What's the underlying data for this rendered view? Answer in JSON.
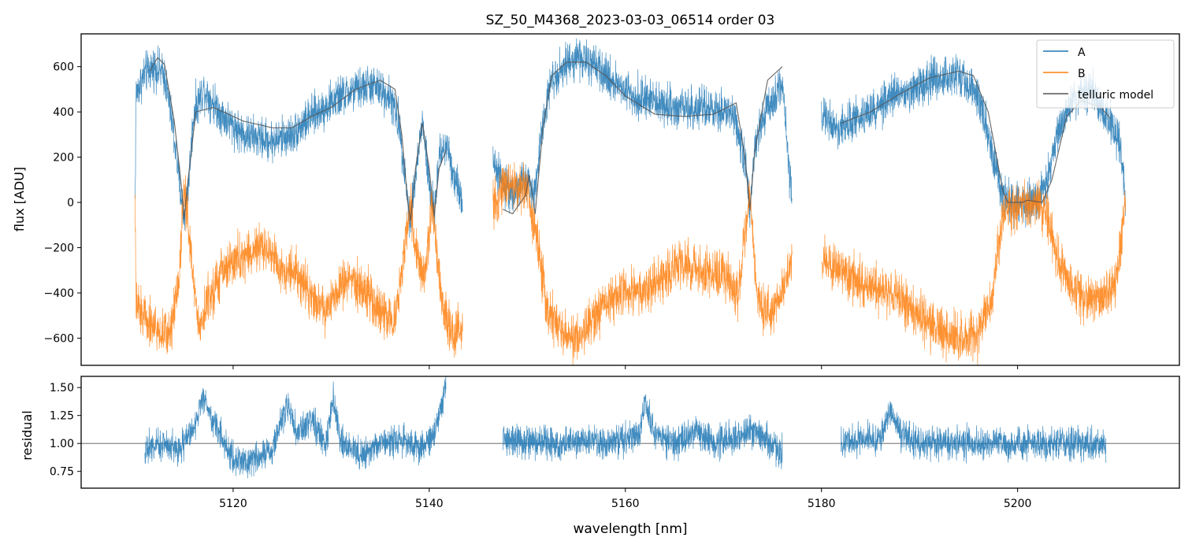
{
  "chart_data": [
    {
      "type": "line",
      "panel": "spectrum",
      "title": "SZ_50_M4368_2023-03-03_06514  order 03",
      "xlabel": "",
      "ylabel": "flux [ADU]",
      "xlim": [
        5104.5,
        5216.5
      ],
      "ylim": [
        -720,
        745
      ],
      "yticks": [
        -600,
        -400,
        -200,
        0,
        200,
        400,
        600
      ],
      "ytick_labels": [
        "−600",
        "−400",
        "−200",
        "0",
        "200",
        "400",
        "600"
      ],
      "legend_position": "top-right",
      "segments": [
        {
          "x0": 5110.0,
          "x1": 5143.4
        },
        {
          "x0": 5146.5,
          "x1": 5177.0
        },
        {
          "x0": 5180.0,
          "x1": 5211.0
        }
      ],
      "series": [
        {
          "name": "A",
          "color": "#1f77b4",
          "noise": 70,
          "points": [
            [
              5110.0,
              0
            ],
            [
              5110.1,
              480
            ],
            [
              5111.0,
              570
            ],
            [
              5112.0,
              600
            ],
            [
              5113.0,
              560
            ],
            [
              5113.8,
              350
            ],
            [
              5114.6,
              60
            ],
            [
              5115.0,
              -60
            ],
            [
              5115.4,
              60
            ],
            [
              5116.0,
              400
            ],
            [
              5117.0,
              500
            ],
            [
              5119.0,
              380
            ],
            [
              5121.0,
              300
            ],
            [
              5124.0,
              270
            ],
            [
              5126.0,
              300
            ],
            [
              5128.0,
              380
            ],
            [
              5131.0,
              470
            ],
            [
              5134.0,
              520
            ],
            [
              5136.0,
              470
            ],
            [
              5137.0,
              330
            ],
            [
              5137.6,
              100
            ],
            [
              5138.0,
              -80
            ],
            [
              5138.5,
              80
            ],
            [
              5139.3,
              360
            ],
            [
              5140.0,
              80
            ],
            [
              5140.5,
              -60
            ],
            [
              5141.0,
              200
            ],
            [
              5141.8,
              260
            ],
            [
              5142.5,
              120
            ],
            [
              5143.4,
              0
            ],
            [
              5146.5,
              200
            ],
            [
              5147.5,
              80
            ],
            [
              5148.5,
              50
            ],
            [
              5150.0,
              100
            ],
            [
              5150.8,
              20
            ],
            [
              5151.5,
              350
            ],
            [
              5152.5,
              550
            ],
            [
              5155.0,
              650
            ],
            [
              5158.0,
              560
            ],
            [
              5161.0,
              470
            ],
            [
              5164.0,
              430
            ],
            [
              5168.0,
              410
            ],
            [
              5171.0,
              390
            ],
            [
              5172.2,
              200
            ],
            [
              5172.7,
              -60
            ],
            [
              5173.2,
              240
            ],
            [
              5174.5,
              420
            ],
            [
              5176.0,
              530
            ],
            [
              5177.0,
              0
            ],
            [
              5180.0,
              380
            ],
            [
              5182.0,
              330
            ],
            [
              5185.0,
              400
            ],
            [
              5188.0,
              480
            ],
            [
              5191.0,
              540
            ],
            [
              5194.0,
              570
            ],
            [
              5196.0,
              480
            ],
            [
              5197.5,
              200
            ],
            [
              5198.5,
              30
            ],
            [
              5200.0,
              0
            ],
            [
              5202.0,
              0
            ],
            [
              5203.0,
              80
            ],
            [
              5204.0,
              300
            ],
            [
              5205.5,
              450
            ],
            [
              5207.5,
              500
            ],
            [
              5209.5,
              350
            ],
            [
              5210.5,
              250
            ],
            [
              5211.0,
              0
            ]
          ]
        },
        {
          "name": "B",
          "color": "#ff7f0e",
          "noise": 80,
          "points": [
            [
              5110.0,
              0
            ],
            [
              5110.1,
              -460
            ],
            [
              5111.0,
              -500
            ],
            [
              5112.5,
              -580
            ],
            [
              5113.5,
              -580
            ],
            [
              5114.5,
              -330
            ],
            [
              5115.0,
              100
            ],
            [
              5115.5,
              -150
            ],
            [
              5116.5,
              -560
            ],
            [
              5117.5,
              -420
            ],
            [
              5119.0,
              -300
            ],
            [
              5120.5,
              -250
            ],
            [
              5122.0,
              -220
            ],
            [
              5123.5,
              -200
            ],
            [
              5125.0,
              -300
            ],
            [
              5126.5,
              -300
            ],
            [
              5128.0,
              -420
            ],
            [
              5129.5,
              -480
            ],
            [
              5130.5,
              -400
            ],
            [
              5132.0,
              -330
            ],
            [
              5133.0,
              -380
            ],
            [
              5134.0,
              -420
            ],
            [
              5135.0,
              -480
            ],
            [
              5136.5,
              -520
            ],
            [
              5137.2,
              -300
            ],
            [
              5138.0,
              0
            ],
            [
              5138.6,
              -200
            ],
            [
              5139.5,
              -330
            ],
            [
              5140.3,
              0
            ],
            [
              5140.8,
              -250
            ],
            [
              5141.5,
              -480
            ],
            [
              5142.5,
              -600
            ],
            [
              5143.4,
              -560
            ],
            [
              5146.5,
              -20
            ],
            [
              5148.0,
              80
            ],
            [
              5150.0,
              60
            ],
            [
              5151.0,
              -150
            ],
            [
              5152.0,
              -480
            ],
            [
              5154.0,
              -600
            ],
            [
              5156.0,
              -560
            ],
            [
              5158.0,
              -450
            ],
            [
              5160.0,
              -380
            ],
            [
              5162.0,
              -400
            ],
            [
              5164.0,
              -320
            ],
            [
              5166.0,
              -260
            ],
            [
              5168.0,
              -330
            ],
            [
              5170.0,
              -300
            ],
            [
              5171.5,
              -420
            ],
            [
              5172.7,
              40
            ],
            [
              5173.5,
              -450
            ],
            [
              5175.0,
              -500
            ],
            [
              5176.0,
              -380
            ],
            [
              5177.0,
              -250
            ],
            [
              5180.0,
              -260
            ],
            [
              5182.0,
              -300
            ],
            [
              5184.0,
              -350
            ],
            [
              5186.0,
              -380
            ],
            [
              5188.0,
              -420
            ],
            [
              5190.0,
              -500
            ],
            [
              5192.0,
              -560
            ],
            [
              5194.0,
              -600
            ],
            [
              5196.0,
              -580
            ],
            [
              5197.5,
              -400
            ],
            [
              5198.5,
              -50
            ],
            [
              5200.0,
              0
            ],
            [
              5202.0,
              0
            ],
            [
              5203.0,
              -60
            ],
            [
              5204.0,
              -250
            ],
            [
              5205.5,
              -380
            ],
            [
              5207.0,
              -430
            ],
            [
              5208.5,
              -420
            ],
            [
              5210.0,
              -360
            ],
            [
              5211.0,
              10
            ]
          ]
        },
        {
          "name": "telluric model",
          "color": "#555555",
          "noise": 0,
          "points": [
            [
              5111.5,
              580
            ],
            [
              5112.3,
              640
            ],
            [
              5113.0,
              610
            ],
            [
              5114.0,
              360
            ],
            [
              5114.7,
              80
            ],
            [
              5115.0,
              -70
            ],
            [
              5115.4,
              100
            ],
            [
              5116.2,
              400
            ],
            [
              5118.0,
              420
            ],
            [
              5121.0,
              360
            ],
            [
              5124.0,
              330
            ],
            [
              5126.0,
              330
            ],
            [
              5128.0,
              380
            ],
            [
              5130.0,
              420
            ],
            [
              5132.5,
              500
            ],
            [
              5135.0,
              540
            ],
            [
              5136.5,
              500
            ],
            [
              5137.2,
              300
            ],
            [
              5137.8,
              0
            ],
            [
              5138.1,
              -80
            ],
            [
              5138.6,
              150
            ],
            [
              5139.3,
              350
            ],
            [
              5140.0,
              150
            ],
            [
              5140.5,
              -60
            ],
            [
              5141.0,
              150
            ],
            [
              5141.7,
              230
            ],
            [
              5147.5,
              -30
            ],
            [
              5148.5,
              -50
            ],
            [
              5149.8,
              30
            ],
            [
              5150.2,
              120
            ],
            [
              5150.8,
              -50
            ],
            [
              5151.6,
              330
            ],
            [
              5152.5,
              560
            ],
            [
              5154.0,
              620
            ],
            [
              5156.0,
              620
            ],
            [
              5158.0,
              560
            ],
            [
              5160.0,
              470
            ],
            [
              5163.0,
              390
            ],
            [
              5166.0,
              380
            ],
            [
              5169.0,
              390
            ],
            [
              5171.3,
              440
            ],
            [
              5172.2,
              200
            ],
            [
              5172.7,
              -30
            ],
            [
              5173.2,
              230
            ],
            [
              5174.5,
              540
            ],
            [
              5176.0,
              600
            ],
            [
              5182.0,
              350
            ],
            [
              5185.0,
              400
            ],
            [
              5188.0,
              480
            ],
            [
              5191.0,
              550
            ],
            [
              5194.0,
              580
            ],
            [
              5195.5,
              560
            ],
            [
              5197.0,
              400
            ],
            [
              5198.5,
              50
            ],
            [
              5199.0,
              0
            ],
            [
              5200.5,
              0
            ],
            [
              5201.0,
              10
            ],
            [
              5202.5,
              0
            ],
            [
              5203.5,
              100
            ],
            [
              5205.0,
              380
            ],
            [
              5206.5,
              450
            ],
            [
              5208.5,
              420
            ],
            [
              5209.5,
              370
            ]
          ]
        }
      ]
    },
    {
      "type": "line",
      "panel": "residual",
      "title": "",
      "xlabel": "wavelength [nm]",
      "ylabel": "residual",
      "xlim": [
        5104.5,
        5216.5
      ],
      "ylim": [
        0.6,
        1.6
      ],
      "xticks": [
        5120,
        5140,
        5160,
        5180,
        5200
      ],
      "xtick_labels": [
        "5120",
        "5140",
        "5160",
        "5180",
        "5200"
      ],
      "yticks": [
        0.75,
        1.0,
        1.25,
        1.5
      ],
      "ytick_labels": [
        "0.75",
        "1.00",
        "1.25",
        "1.50"
      ],
      "reference_line": 1.0,
      "segments": [
        {
          "x0": 5111.0,
          "x1": 5141.7
        },
        {
          "x0": 5147.5,
          "x1": 5176.0
        },
        {
          "x0": 5182.0,
          "x1": 5209.0
        }
      ],
      "series": [
        {
          "name": "residual",
          "color": "#1f77b4",
          "noise": 0.11,
          "points": [
            [
              5111.0,
              0.95
            ],
            [
              5113.0,
              1.0
            ],
            [
              5114.5,
              0.95
            ],
            [
              5116.0,
              1.15
            ],
            [
              5117.0,
              1.4
            ],
            [
              5118.0,
              1.2
            ],
            [
              5120.0,
              0.85
            ],
            [
              5122.0,
              0.85
            ],
            [
              5124.0,
              0.95
            ],
            [
              5125.5,
              1.35
            ],
            [
              5126.5,
              1.1
            ],
            [
              5128.0,
              1.2
            ],
            [
              5129.5,
              1.0
            ],
            [
              5130.2,
              1.4
            ],
            [
              5131.0,
              1.0
            ],
            [
              5133.0,
              0.9
            ],
            [
              5135.0,
              1.0
            ],
            [
              5137.0,
              1.05
            ],
            [
              5139.0,
              0.95
            ],
            [
              5140.5,
              1.1
            ],
            [
              5141.7,
              1.5
            ],
            [
              5147.5,
              1.05
            ],
            [
              5150.0,
              1.0
            ],
            [
              5153.0,
              1.0
            ],
            [
              5156.0,
              1.05
            ],
            [
              5158.0,
              1.0
            ],
            [
              5160.0,
              1.05
            ],
            [
              5161.5,
              1.1
            ],
            [
              5162.0,
              1.35
            ],
            [
              5163.0,
              1.1
            ],
            [
              5165.0,
              1.0
            ],
            [
              5167.0,
              1.1
            ],
            [
              5169.0,
              1.0
            ],
            [
              5171.0,
              1.05
            ],
            [
              5173.0,
              1.1
            ],
            [
              5175.0,
              1.0
            ],
            [
              5176.0,
              0.9
            ],
            [
              5182.0,
              1.0
            ],
            [
              5184.0,
              1.05
            ],
            [
              5186.0,
              1.05
            ],
            [
              5187.0,
              1.3
            ],
            [
              5188.0,
              1.1
            ],
            [
              5190.0,
              1.0
            ],
            [
              5193.0,
              1.0
            ],
            [
              5196.0,
              1.0
            ],
            [
              5199.0,
              1.0
            ],
            [
              5202.0,
              1.0
            ],
            [
              5205.0,
              1.0
            ],
            [
              5209.0,
              1.0
            ]
          ]
        }
      ]
    }
  ]
}
